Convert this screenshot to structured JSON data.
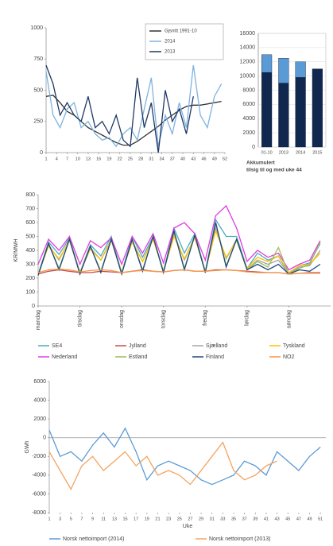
{
  "chart_data": [
    {
      "type": "line",
      "x": [
        1,
        3,
        5,
        7,
        9,
        11,
        13,
        15,
        17,
        19,
        21,
        23,
        25,
        27,
        29,
        31,
        33,
        35,
        37,
        39,
        41,
        43,
        45,
        47,
        49,
        51
      ],
      "xlim": [
        1,
        52
      ],
      "xticks": [
        1,
        4,
        7,
        10,
        13,
        16,
        19,
        22,
        25,
        28,
        31,
        34,
        37,
        40,
        43,
        46,
        49,
        52
      ],
      "ylim": [
        0,
        1000
      ],
      "yticks": [
        0,
        250,
        500,
        750,
        1000
      ],
      "grid": false,
      "legend": "upper right",
      "series": [
        {
          "name": "Gjsnitt 1991-10",
          "color": "#333333",
          "values": [
            450,
            460,
            400,
            330,
            300,
            250,
            200,
            170,
            140,
            110,
            80,
            60,
            60,
            90,
            130,
            170,
            210,
            260,
            300,
            340,
            370,
            380,
            380,
            390,
            400,
            410
          ]
        },
        {
          "name": "2014",
          "color": "#7fb2e0",
          "values": [
            650,
            300,
            200,
            350,
            400,
            200,
            250,
            150,
            100,
            120,
            50,
            150,
            200,
            100,
            350,
            600,
            50,
            300,
            150,
            400,
            200,
            700,
            300,
            200,
            450,
            550
          ]
        },
        {
          "name": "2013",
          "color": "#1f3864",
          "values": [
            700,
            550,
            300,
            400,
            300,
            250,
            450,
            200,
            250,
            150,
            300,
            100,
            50,
            600,
            200,
            400,
            0,
            500,
            250,
            350,
            150,
            450,
            null,
            null,
            null,
            null
          ]
        }
      ]
    },
    {
      "type": "bar",
      "categories": [
        "01-10",
        "2013",
        "2014",
        "2015"
      ],
      "ylim": [
        0,
        16000
      ],
      "yticks": [
        0,
        2000,
        4000,
        6000,
        8000,
        10000,
        12000,
        14000,
        16000
      ],
      "grid": true,
      "annotations": [
        "Akkumulert",
        "tilsig til og med uke 44"
      ],
      "series": [
        {
          "color": "#10284f",
          "values": [
            10500,
            9000,
            9800,
            11000
          ]
        },
        {
          "color": "#5b9bd5",
          "values": [
            2500,
            3500,
            2200,
            0
          ]
        }
      ]
    },
    {
      "type": "line",
      "ylabel": "KR/MWH",
      "x": [
        0,
        6,
        12,
        18,
        24,
        30,
        36,
        42,
        48,
        54,
        60,
        66,
        72,
        78,
        84,
        90,
        96,
        102,
        108,
        114,
        120,
        126,
        132,
        138,
        144,
        150,
        156,
        162
      ],
      "xlim": [
        0,
        168
      ],
      "ylim": [
        0,
        800
      ],
      "yticks": [
        0,
        100,
        200,
        300,
        400,
        500,
        600,
        700,
        800
      ],
      "grid": false,
      "xtick_rotation": 90,
      "legend": "bottom",
      "xticks": [
        {
          "value": 0,
          "label": "mandag"
        },
        {
          "value": 24,
          "label": "tirsdag"
        },
        {
          "value": 48,
          "label": "onsdag"
        },
        {
          "value": 72,
          "label": "torsdag"
        },
        {
          "value": 96,
          "label": "fredag"
        },
        {
          "value": 120,
          "label": "lørdag"
        },
        {
          "value": 144,
          "label": "søndag"
        }
      ],
      "series": [
        {
          "name": "SE4",
          "color": "#4bacc6",
          "values": [
            230,
            460,
            370,
            490,
            240,
            440,
            360,
            500,
            240,
            500,
            350,
            500,
            250,
            560,
            380,
            520,
            250,
            620,
            500,
            500,
            270,
            380,
            330,
            360,
            230,
            290,
            310,
            450
          ]
        },
        {
          "name": "Jylland",
          "color": "#c0504d",
          "values": [
            230,
            250,
            260,
            250,
            240,
            240,
            250,
            245,
            240,
            250,
            260,
            250,
            245,
            255,
            260,
            250,
            250,
            260,
            260,
            255,
            250,
            245,
            240,
            240,
            230,
            235,
            240,
            240
          ]
        },
        {
          "name": "Sjælland",
          "color": "#a6a6a6",
          "values": [
            230,
            440,
            330,
            480,
            240,
            420,
            330,
            480,
            240,
            470,
            320,
            490,
            250,
            520,
            330,
            500,
            250,
            560,
            340,
            480,
            260,
            330,
            300,
            330,
            230,
            280,
            290,
            400
          ]
        },
        {
          "name": "Tyskland",
          "color": "#ffc000",
          "values": [
            230,
            430,
            340,
            470,
            240,
            410,
            330,
            470,
            240,
            460,
            320,
            480,
            250,
            500,
            340,
            490,
            250,
            540,
            350,
            470,
            270,
            350,
            320,
            360,
            240,
            290,
            300,
            380
          ]
        },
        {
          "name": "Nederland",
          "color": "#e03ce0",
          "values": [
            300,
            480,
            400,
            500,
            300,
            470,
            420,
            490,
            300,
            500,
            380,
            520,
            310,
            560,
            600,
            520,
            330,
            650,
            720,
            560,
            320,
            400,
            350,
            380,
            260,
            300,
            330,
            470
          ]
        },
        {
          "name": "Estland",
          "color": "#9bbb59",
          "values": [
            220,
            450,
            270,
            480,
            230,
            430,
            250,
            480,
            230,
            480,
            260,
            500,
            240,
            540,
            270,
            510,
            240,
            600,
            290,
            480,
            260,
            320,
            280,
            420,
            230,
            270,
            300,
            460
          ]
        },
        {
          "name": "Finland",
          "color": "#1f497d",
          "values": [
            220,
            450,
            260,
            480,
            230,
            430,
            240,
            480,
            230,
            480,
            250,
            500,
            240,
            540,
            260,
            510,
            240,
            600,
            280,
            480,
            260,
            300,
            260,
            300,
            230,
            260,
            250,
            300
          ]
        },
        {
          "name": "NO2",
          "color": "#f79646",
          "values": [
            240,
            260,
            265,
            260,
            245,
            255,
            260,
            255,
            240,
            250,
            255,
            250,
            245,
            255,
            260,
            250,
            250,
            255,
            260,
            255,
            245,
            240,
            240,
            240,
            230,
            235,
            235,
            235
          ]
        }
      ]
    },
    {
      "type": "line",
      "ylabel": "GWh",
      "xlabel": "Uke",
      "x": [
        1,
        3,
        5,
        7,
        9,
        11,
        13,
        15,
        17,
        19,
        21,
        23,
        25,
        27,
        29,
        31,
        33,
        35,
        37,
        39,
        41,
        43,
        45,
        47,
        49,
        51
      ],
      "xlim": [
        1,
        52
      ],
      "xticks": [
        1,
        3,
        5,
        7,
        9,
        11,
        13,
        15,
        17,
        19,
        21,
        23,
        25,
        27,
        29,
        31,
        33,
        35,
        37,
        39,
        41,
        43,
        45,
        47,
        49,
        51
      ],
      "ylim": [
        -8000,
        6000
      ],
      "yticks": [
        -8000,
        -6000,
        -4000,
        -2000,
        0,
        2000,
        4000,
        6000
      ],
      "grid": false,
      "legend": "bottom",
      "series": [
        {
          "name": "Norsk nettoimport (2014)",
          "color": "#5b9bd5",
          "values": [
            800,
            -2000,
            -1500,
            -2500,
            -800,
            500,
            -1000,
            1000,
            -1500,
            -4500,
            -3000,
            -2500,
            -3000,
            -3500,
            -4500,
            -5000,
            -4500,
            -4000,
            -2500,
            -3000,
            -4000,
            -1500,
            -2500,
            -3500,
            -2000,
            -1000
          ]
        },
        {
          "name": "Norsk nettoimport (2013)",
          "color": "#f4a460",
          "values": [
            -1500,
            -3500,
            -5500,
            -3000,
            -2000,
            -3500,
            -2500,
            -1500,
            -3000,
            -2000,
            -4000,
            -3500,
            -4000,
            -5000,
            -3500,
            -2000,
            -500,
            -3500,
            -4500,
            -4000,
            -3000,
            -2500,
            null,
            null,
            null,
            null
          ]
        }
      ]
    }
  ]
}
